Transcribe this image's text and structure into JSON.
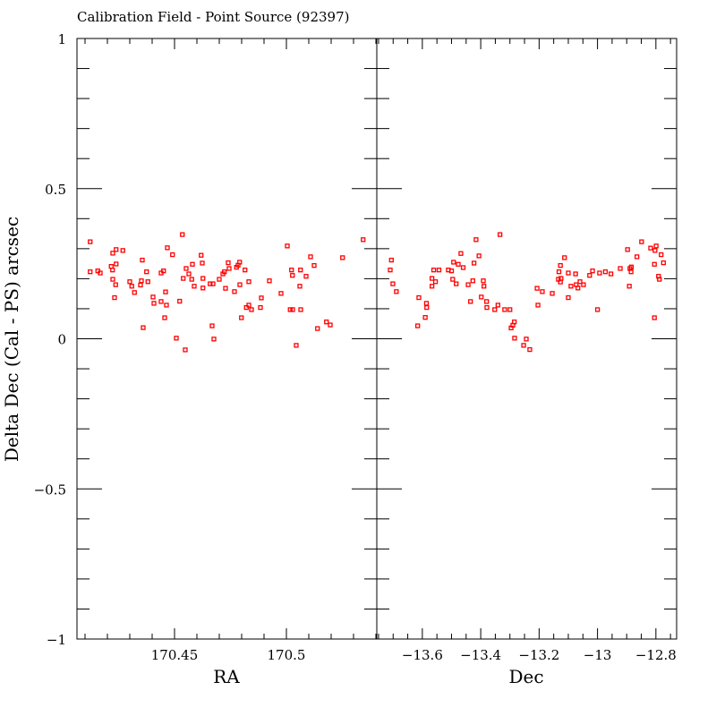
{
  "chart_data": [
    {
      "type": "scatter",
      "panel": "left",
      "title": "Calibration Field - Point Source (92397)",
      "xlabel": "RA",
      "ylabel": "Delta Dec (Cal - PS) arcsec",
      "xlim": [
        170.4064,
        170.5404
      ],
      "ylim": [
        -1,
        1
      ],
      "xticks": [
        170.45,
        170.5
      ],
      "xtick_labels": [
        "170.45",
        "170.5"
      ],
      "x_minor_step": 0.01,
      "yticks": [
        -1,
        -0.5,
        0,
        0.5,
        1
      ],
      "ytick_labels": [
        "−1",
        "−0.5",
        "0",
        "0.5",
        "1"
      ],
      "y_minor_step": 0.1,
      "marker_color": "#ff0000",
      "grid": false,
      "points": [
        [
          170.4123,
          0.323
        ],
        [
          170.4123,
          0.223
        ],
        [
          170.4157,
          0.226
        ],
        [
          170.4168,
          0.219
        ],
        [
          170.4239,
          0.297
        ],
        [
          170.4224,
          0.285
        ],
        [
          170.4269,
          0.294
        ],
        [
          170.4217,
          0.241
        ],
        [
          170.4223,
          0.229
        ],
        [
          170.4239,
          0.249
        ],
        [
          170.4224,
          0.198
        ],
        [
          170.4237,
          0.18
        ],
        [
          170.4232,
          0.137
        ],
        [
          170.4356,
          0.262
        ],
        [
          170.4375,
          0.223
        ],
        [
          170.43,
          0.19
        ],
        [
          170.4309,
          0.175
        ],
        [
          170.4321,
          0.154
        ],
        [
          170.4352,
          0.193
        ],
        [
          170.4348,
          0.179
        ],
        [
          170.4381,
          0.19
        ],
        [
          170.436,
          0.037
        ],
        [
          170.4404,
          0.139
        ],
        [
          170.4408,
          0.118
        ],
        [
          170.444,
          0.124
        ],
        [
          170.4464,
          0.112
        ],
        [
          170.446,
          0.156
        ],
        [
          170.4456,
          0.07
        ],
        [
          170.444,
          0.219
        ],
        [
          170.4451,
          0.226
        ],
        [
          170.4468,
          0.303
        ],
        [
          170.4491,
          0.28
        ],
        [
          170.4535,
          0.347
        ],
        [
          170.4508,
          0.002
        ],
        [
          170.4548,
          -0.037
        ],
        [
          170.4523,
          0.125
        ],
        [
          170.4552,
          0.234
        ],
        [
          170.4564,
          0.216
        ],
        [
          170.4539,
          0.201
        ],
        [
          170.4577,
          0.198
        ],
        [
          170.458,
          0.248
        ],
        [
          170.4619,
          0.278
        ],
        [
          170.4624,
          0.252
        ],
        [
          170.4588,
          0.175
        ],
        [
          170.4627,
          0.201
        ],
        [
          170.4627,
          0.169
        ],
        [
          170.4668,
          0.043
        ],
        [
          170.4676,
          -0.001
        ],
        [
          170.4659,
          0.183
        ],
        [
          170.4672,
          0.183
        ],
        [
          170.47,
          0.198
        ],
        [
          170.4716,
          0.216
        ],
        [
          170.4723,
          0.223
        ],
        [
          170.474,
          0.253
        ],
        [
          170.4744,
          0.234
        ],
        [
          170.4728,
          0.168
        ],
        [
          170.4768,
          0.157
        ],
        [
          170.4777,
          0.238
        ],
        [
          170.4784,
          0.245
        ],
        [
          170.4791,
          0.255
        ],
        [
          170.4815,
          0.229
        ],
        [
          170.4792,
          0.18
        ],
        [
          170.4832,
          0.19
        ],
        [
          170.4799,
          0.07
        ],
        [
          170.4821,
          0.104
        ],
        [
          170.4832,
          0.112
        ],
        [
          170.4844,
          0.097
        ],
        [
          170.4884,
          0.104
        ],
        [
          170.4888,
          0.136
        ],
        [
          170.4924,
          0.193
        ],
        [
          170.4976,
          0.151
        ],
        [
          170.5004,
          0.309
        ],
        [
          170.5023,
          0.229
        ],
        [
          170.5027,
          0.211
        ],
        [
          170.5063,
          0.229
        ],
        [
          170.506,
          0.175
        ],
        [
          170.5088,
          0.208
        ],
        [
          170.5108,
          0.273
        ],
        [
          170.5124,
          0.244
        ],
        [
          170.5017,
          0.097
        ],
        [
          170.5028,
          0.097
        ],
        [
          170.5064,
          0.097
        ],
        [
          170.5044,
          -0.022
        ],
        [
          170.5139,
          0.034
        ],
        [
          170.5179,
          0.056
        ],
        [
          170.5196,
          0.046
        ],
        [
          170.5251,
          0.27
        ],
        [
          170.5343,
          0.33
        ]
      ]
    },
    {
      "type": "scatter",
      "panel": "right",
      "xlabel": "Dec",
      "xlim": [
        -13.756,
        -12.729
      ],
      "ylim": [
        -1,
        1
      ],
      "xticks": [
        -13.6,
        -13.4,
        -13.2,
        -13.0,
        -12.8
      ],
      "xtick_labels": [
        "−13.6",
        "−13.4",
        "−13.2",
        "−13",
        "−12.8"
      ],
      "x_minor_step": 0.05,
      "y_minor_step": 0.1,
      "marker_color": "#ff0000",
      "grid": false,
      "points": [
        [
          -13.706,
          0.262
        ],
        [
          -13.71,
          0.229
        ],
        [
          -13.701,
          0.183
        ],
        [
          -13.689,
          0.157
        ],
        [
          -13.612,
          0.137
        ],
        [
          -13.586,
          0.118
        ],
        [
          -13.585,
          0.104
        ],
        [
          -13.59,
          0.071
        ],
        [
          -13.616,
          0.043
        ],
        [
          -13.561,
          0.229
        ],
        [
          -13.567,
          0.201
        ],
        [
          -13.555,
          0.19
        ],
        [
          -13.567,
          0.175
        ],
        [
          -13.543,
          0.229
        ],
        [
          -13.511,
          0.229
        ],
        [
          -13.5,
          0.226
        ],
        [
          -13.493,
          0.255
        ],
        [
          -13.477,
          0.248
        ],
        [
          -13.468,
          0.284
        ],
        [
          -13.46,
          0.237
        ],
        [
          -13.496,
          0.198
        ],
        [
          -13.484,
          0.183
        ],
        [
          -13.443,
          0.18
        ],
        [
          -13.427,
          0.193
        ],
        [
          -13.423,
          0.252
        ],
        [
          -13.406,
          0.276
        ],
        [
          -13.416,
          0.33
        ],
        [
          -13.435,
          0.124
        ],
        [
          -13.398,
          0.139
        ],
        [
          -13.391,
          0.193
        ],
        [
          -13.389,
          0.175
        ],
        [
          -13.38,
          0.124
        ],
        [
          -13.379,
          0.104
        ],
        [
          -13.341,
          0.112
        ],
        [
          -13.352,
          0.097
        ],
        [
          -13.334,
          0.347
        ],
        [
          -13.318,
          0.097
        ],
        [
          -13.3,
          0.097
        ],
        [
          -13.285,
          0.056
        ],
        [
          -13.29,
          0.045
        ],
        [
          -13.296,
          0.036
        ],
        [
          -13.284,
          0.002
        ],
        [
          -13.244,
          -0.001
        ],
        [
          -13.253,
          -0.022
        ],
        [
          -13.232,
          -0.036
        ],
        [
          -13.207,
          0.168
        ],
        [
          -13.204,
          0.112
        ],
        [
          -13.189,
          0.157
        ],
        [
          -13.155,
          0.151
        ],
        [
          -13.132,
          0.223
        ],
        [
          -13.134,
          0.198
        ],
        [
          -13.127,
          0.244
        ],
        [
          -13.127,
          0.189
        ],
        [
          -13.125,
          0.201
        ],
        [
          -13.113,
          0.27
        ],
        [
          -13.1,
          0.219
        ],
        [
          -13.1,
          0.137
        ],
        [
          -13.091,
          0.175
        ],
        [
          -13.075,
          0.216
        ],
        [
          -13.073,
          0.18
        ],
        [
          -13.067,
          0.169
        ],
        [
          -13.06,
          0.19
        ],
        [
          -13.048,
          0.18
        ],
        [
          -13.027,
          0.211
        ],
        [
          -13.017,
          0.226
        ],
        [
          -13.0,
          0.097
        ],
        [
          -12.993,
          0.219
        ],
        [
          -12.973,
          0.223
        ],
        [
          -12.954,
          0.216
        ],
        [
          -12.922,
          0.234
        ],
        [
          -12.897,
          0.297
        ],
        [
          -12.891,
          0.175
        ],
        [
          -12.889,
          0.234
        ],
        [
          -12.884,
          0.239
        ],
        [
          -12.885,
          0.223
        ],
        [
          -12.865,
          0.273
        ],
        [
          -12.849,
          0.323
        ],
        [
          -12.818,
          0.302
        ],
        [
          -12.799,
          0.309
        ],
        [
          -12.803,
          0.294
        ],
        [
          -12.805,
          0.248
        ],
        [
          -12.782,
          0.28
        ],
        [
          -12.774,
          0.253
        ],
        [
          -12.791,
          0.208
        ],
        [
          -12.788,
          0.198
        ],
        [
          -12.805,
          0.07
        ]
      ]
    }
  ]
}
